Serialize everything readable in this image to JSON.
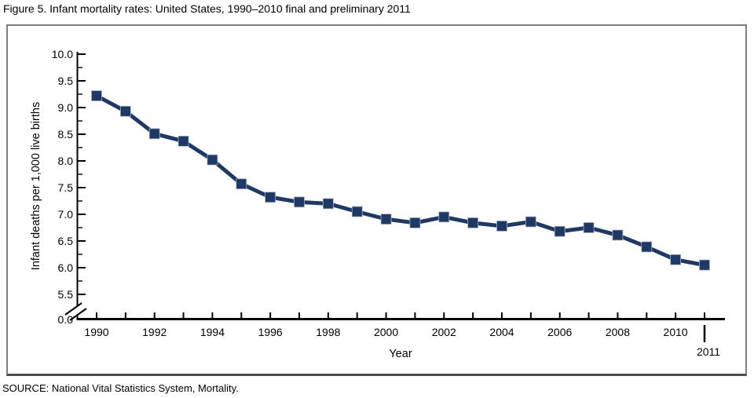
{
  "page": {
    "title": "Figure 5. Infant mortality rates: United States, 1990–2010 final and preliminary 2011",
    "source": "SOURCE: National Vital Statistics System, Mortality."
  },
  "chart_data": {
    "type": "line",
    "title": "Figure 5. Infant mortality rates: United States, 1990–2010 final and preliminary 2011",
    "xlabel": "Year",
    "ylabel": "Infant deaths per 1,000 live births",
    "x": [
      1990,
      1991,
      1992,
      1993,
      1994,
      1995,
      1996,
      1997,
      1998,
      1999,
      2000,
      2001,
      2002,
      2003,
      2004,
      2005,
      2006,
      2007,
      2008,
      2009,
      2010,
      2011
    ],
    "values": [
      9.22,
      8.93,
      8.51,
      8.37,
      8.02,
      7.57,
      7.32,
      7.23,
      7.2,
      7.05,
      6.91,
      6.84,
      6.95,
      6.84,
      6.78,
      6.86,
      6.68,
      6.75,
      6.61,
      6.39,
      6.15,
      6.05
    ],
    "y_ticks": [
      10.0,
      9.5,
      9.0,
      8.5,
      8.0,
      7.5,
      7.0,
      6.5,
      6.0,
      5.5
    ],
    "y_minor_tick_interval": 0.25,
    "y_origin_label": "0.0",
    "y_axis_break": true,
    "x_label_years": [
      1990,
      1992,
      1994,
      1996,
      1998,
      2000,
      2002,
      2004,
      2006,
      2008,
      2010
    ],
    "x_extra_label": "2011",
    "ylim": [
      0,
      10
    ],
    "ylim_display": [
      5.5,
      10.0
    ],
    "grid": false,
    "legend": "none",
    "marker": "square",
    "line_color": "#1F3864",
    "axis_color": "#000000",
    "source": "SOURCE: National Vital Statistics System, Mortality."
  }
}
